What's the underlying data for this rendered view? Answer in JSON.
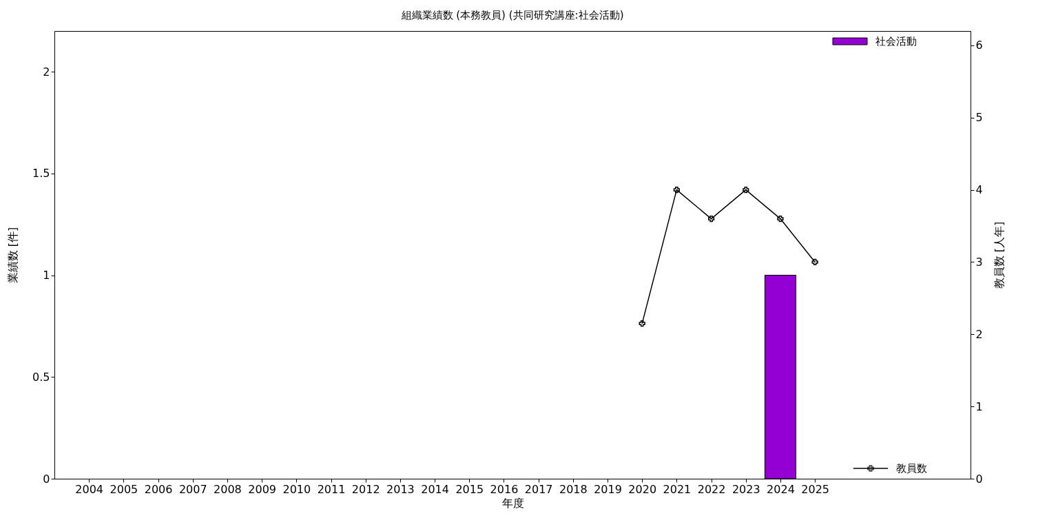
{
  "chart_data": {
    "type": "bar",
    "title": "組織業績数 (本務教員) (共同研究講座:社会活動)",
    "xlabel": "年度",
    "ylabel": "業績数 [件]",
    "y2label": "教員数 [人年]",
    "xlim": [
      2003,
      2029.5
    ],
    "xticks": [
      2004,
      2005,
      2006,
      2007,
      2008,
      2009,
      2010,
      2011,
      2012,
      2013,
      2014,
      2015,
      2016,
      2017,
      2018,
      2019,
      2020,
      2021,
      2022,
      2023,
      2024,
      2025
    ],
    "ylim": [
      0,
      2.2
    ],
    "yticks": [
      0,
      0.5,
      1,
      1.5,
      2
    ],
    "y2lim": [
      0,
      6.2
    ],
    "y2ticks": [
      0,
      1,
      2,
      3,
      4,
      5,
      6
    ],
    "series": [
      {
        "name": "社会活動",
        "color": "#9400d3",
        "x": [
          2024
        ],
        "values": [
          1
        ]
      },
      {
        "name": "教員数",
        "type": "line",
        "axis": "y2",
        "color": "#000000",
        "marker": "cross",
        "x": [
          2020,
          2021,
          2022,
          2023,
          2024,
          2025
        ],
        "values": [
          2.15,
          4,
          3.6,
          4,
          3.6,
          3.0
        ]
      }
    ],
    "legend": "right",
    "grid": false
  }
}
